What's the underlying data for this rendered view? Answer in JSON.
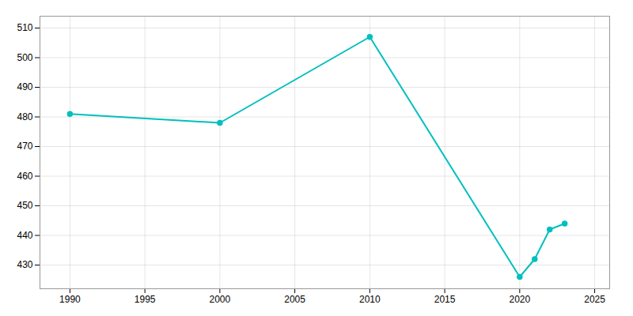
{
  "chart_data": {
    "type": "line",
    "x": [
      1990,
      2000,
      2010,
      2020,
      2021,
      2022,
      2023
    ],
    "values": [
      481,
      478,
      507,
      426,
      432,
      442,
      444
    ],
    "color": "#00BFBF",
    "marker": "circle",
    "xlim": [
      1988,
      2026
    ],
    "xticks": [
      1990,
      1995,
      2000,
      2005,
      2010,
      2015,
      2020,
      2025
    ],
    "ylim": [
      422,
      514
    ],
    "yticks": [
      430,
      440,
      450,
      460,
      470,
      480,
      490,
      500,
      510
    ],
    "grid": true
  }
}
